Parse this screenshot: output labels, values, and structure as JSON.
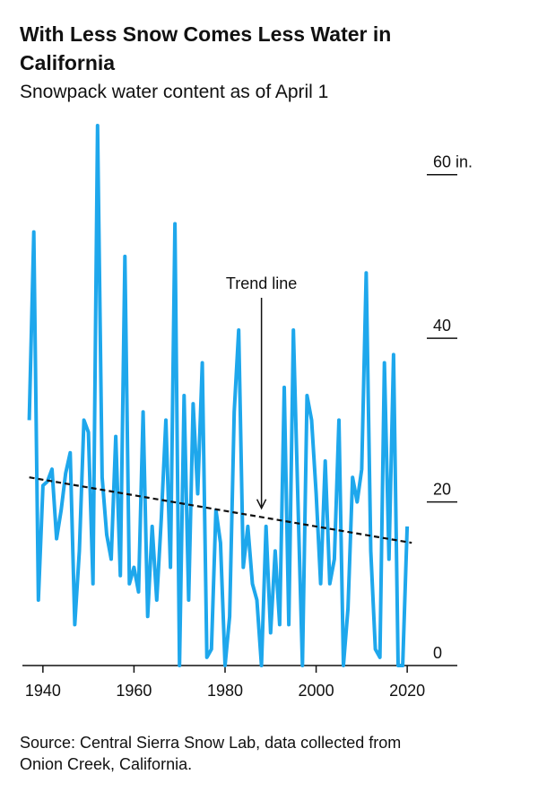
{
  "chart_data": {
    "type": "line",
    "title": [
      "With Less Snow Comes Less Water in",
      "California"
    ],
    "subtitle": "Snowpack water content as of April 1",
    "source": [
      "Source: Central Sierra Snow Lab, data collected from",
      "Onion Creek, California."
    ],
    "annotation": {
      "text": "Trend line",
      "x": 1988,
      "y": 19
    },
    "x": [
      1937,
      1938,
      1939,
      1940,
      1941,
      1942,
      1943,
      1944,
      1945,
      1946,
      1947,
      1948,
      1949,
      1950,
      1951,
      1952,
      1953,
      1954,
      1955,
      1956,
      1957,
      1958,
      1959,
      1960,
      1961,
      1962,
      1963,
      1964,
      1965,
      1966,
      1967,
      1968,
      1969,
      1970,
      1971,
      1972,
      1973,
      1974,
      1975,
      1976,
      1977,
      1978,
      1979,
      1980,
      1981,
      1982,
      1983,
      1984,
      1985,
      1986,
      1987,
      1988,
      1989,
      1990,
      1991,
      1992,
      1993,
      1994,
      1995,
      1996,
      1997,
      1998,
      1999,
      2000,
      2001,
      2002,
      2003,
      2004,
      2005,
      2006,
      2007,
      2008,
      2009,
      2010,
      2011,
      2012,
      2013,
      2014,
      2015,
      2016,
      2017,
      2018,
      2019,
      2020
    ],
    "series": [
      {
        "color": "#1ea7ec",
        "values": [
          30,
          53,
          8,
          22,
          22.5,
          24,
          15.5,
          19,
          23.5,
          26,
          5,
          14,
          30,
          28.5,
          10,
          66,
          23,
          16,
          13,
          28,
          11,
          50,
          10,
          12,
          9,
          31,
          6,
          17,
          8,
          18,
          30,
          12,
          54,
          0,
          33,
          8,
          32,
          21,
          37,
          1,
          2,
          19,
          15,
          0,
          6,
          31,
          41,
          12,
          17,
          10,
          8,
          0,
          17,
          4,
          14,
          5,
          34,
          5,
          41,
          20,
          0,
          33,
          30,
          21,
          10,
          25,
          10,
          13,
          30,
          0,
          7,
          23,
          20,
          24,
          48,
          14,
          2,
          1,
          37,
          13,
          38,
          0,
          0,
          17
        ]
      },
      {
        "color": "#111111",
        "dashed": true,
        "x": [
          1937,
          2021
        ],
        "values": [
          23,
          15
        ]
      }
    ],
    "xlim": [
      1935.5,
      2031
    ],
    "xticks": [
      1940,
      1960,
      1980,
      2000,
      2020
    ],
    "ylim": [
      0,
      66
    ],
    "yticks": [
      0,
      20,
      40,
      {
        "value": 60,
        "label": "60 in."
      }
    ]
  }
}
